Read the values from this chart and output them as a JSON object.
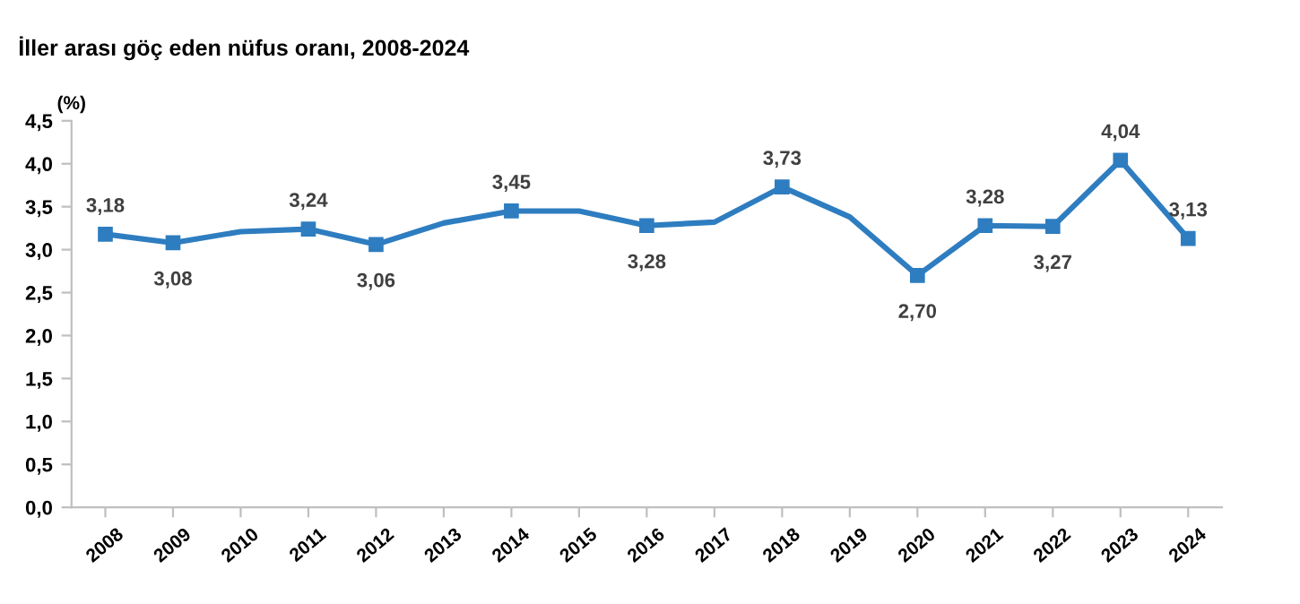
{
  "chart_data": {
    "type": "line",
    "title": "İller arası göç eden nüfus oranı, 2008-2024",
    "ylabel": "(%)",
    "categories": [
      "2008",
      "2009",
      "2010",
      "2011",
      "2012",
      "2013",
      "2014",
      "2015",
      "2016",
      "2017",
      "2018",
      "2019",
      "2020",
      "2021",
      "2022",
      "2023",
      "2024"
    ],
    "series": [
      {
        "color": "#2e7dc0",
        "values": [
          3.18,
          3.08,
          3.21,
          3.24,
          3.06,
          3.31,
          3.45,
          3.45,
          3.28,
          3.32,
          3.73,
          3.38,
          2.7,
          3.28,
          3.27,
          4.04,
          3.13
        ],
        "value_labels": [
          "3,18",
          "3,08",
          null,
          "3,24",
          "3,06",
          null,
          "3,45",
          null,
          "3,28",
          null,
          "3,73",
          null,
          "2,70",
          "3,28",
          "3,27",
          "4,04",
          "3,13"
        ]
      }
    ],
    "ylim": [
      0,
      4.5
    ],
    "yticks": [
      {
        "value": 0,
        "label": "0,0"
      },
      {
        "value": 0.5,
        "label": "0,5"
      },
      {
        "value": 1,
        "label": "1,0"
      },
      {
        "value": 1.5,
        "label": "1,5"
      },
      {
        "value": 2,
        "label": "2,0"
      },
      {
        "value": 2.5,
        "label": "2,5"
      },
      {
        "value": 3,
        "label": "3,0"
      },
      {
        "value": 3.5,
        "label": "3,5"
      },
      {
        "value": 4,
        "label": "4,0"
      },
      {
        "value": 4.5,
        "label": "4,5"
      }
    ],
    "grid": false,
    "legend": false,
    "marker": "square",
    "line_style": "solid"
  }
}
